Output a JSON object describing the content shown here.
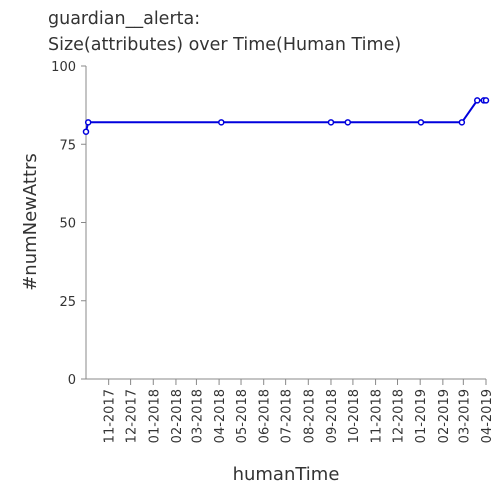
{
  "chart_data": {
    "type": "line",
    "title_lines": [
      "guardian__alerta:",
      "Size(attributes) over Time(Human Time)"
    ],
    "xlabel": "humanTime",
    "ylabel": "#numNewAttrs",
    "x_ticks": [
      "11-2017",
      "12-2017",
      "01-2018",
      "02-2018",
      "03-2018",
      "04-2018",
      "05-2018",
      "06-2018",
      "07-2018",
      "08-2018",
      "09-2018",
      "10-2018",
      "11-2018",
      "12-2018",
      "01-2019",
      "02-2019",
      "03-2019",
      "04-2019"
    ],
    "xlim": [
      "2017-10-01",
      "2019-04-01"
    ],
    "ylim": [
      0,
      100
    ],
    "y_ticks": [
      0,
      25,
      50,
      75,
      100
    ],
    "grid": false,
    "series_color": "#0000dd",
    "points": [
      {
        "x": "2017-10-01",
        "y": 79
      },
      {
        "x": "2017-10-04",
        "y": 82
      },
      {
        "x": "2018-04-04",
        "y": 82
      },
      {
        "x": "2018-09-01",
        "y": 82
      },
      {
        "x": "2018-09-24",
        "y": 82
      },
      {
        "x": "2019-01-02",
        "y": 82
      },
      {
        "x": "2019-02-27",
        "y": 82
      },
      {
        "x": "2019-03-20",
        "y": 89
      },
      {
        "x": "2019-03-29",
        "y": 89
      },
      {
        "x": "2019-04-01",
        "y": 89
      }
    ]
  }
}
